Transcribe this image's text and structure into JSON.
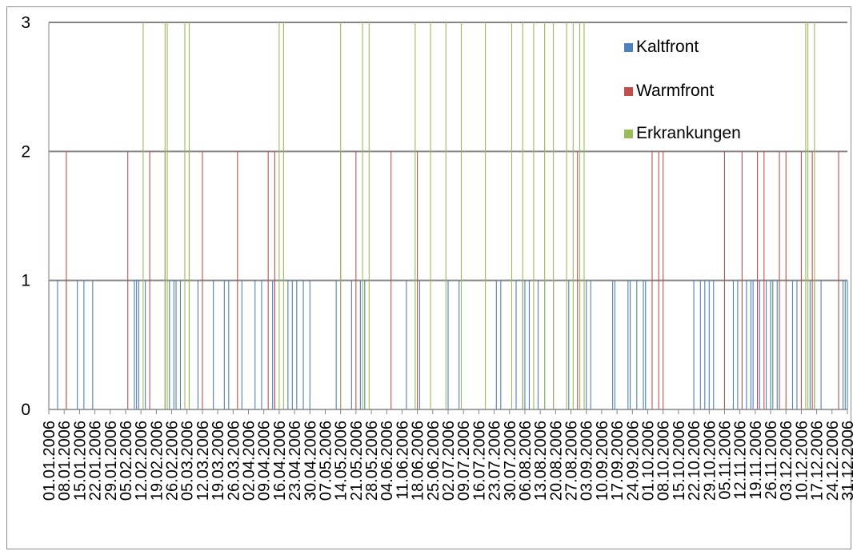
{
  "chart_data": {
    "type": "bar",
    "title": "",
    "xlabel": "",
    "ylabel": "",
    "ylim": [
      0,
      3
    ],
    "yticks": [
      0,
      1,
      2,
      3
    ],
    "grid": true,
    "legend_position": "top-right",
    "x_range": [
      "01.01.2006",
      "31.12.2006"
    ],
    "xtick_labels": [
      "01.01.2006",
      "08.01.2006",
      "15.01.2006",
      "22.01.2006",
      "29.01.2006",
      "05.02.2006",
      "12.02.2006",
      "19.02.2006",
      "26.02.2006",
      "05.03.2006",
      "12.03.2006",
      "19.03.2006",
      "26.03.2006",
      "02.04.2006",
      "09.04.2006",
      "16.04.2006",
      "23.04.2006",
      "30.04.2006",
      "07.05.2006",
      "14.05.2006",
      "21.05.2006",
      "28.05.2006",
      "04.06.2006",
      "11.06.2006",
      "18.06.2006",
      "25.06.2006",
      "02.07.2006",
      "09.07.2006",
      "16.07.2006",
      "23.07.2006",
      "30.07.2006",
      "06.08.2006",
      "13.08.2006",
      "20.08.2006",
      "27.08.2006",
      "03.09.2006",
      "10.09.2006",
      "17.09.2006",
      "24.09.2006",
      "01.10.2006",
      "08.10.2006",
      "15.10.2006",
      "22.10.2006",
      "29.10.2006",
      "05.11.2006",
      "12.11.2006",
      "19.11.2006",
      "26.11.2006",
      "03.12.2006",
      "10.12.2006",
      "17.12.2006",
      "24.12.2006",
      "31.12.2006"
    ],
    "series": [
      {
        "name": "Kaltfront",
        "color": "#4f81bd",
        "value": 1,
        "dates": [
          "01.01.2006",
          "05.01.2006",
          "09.01.2006",
          "14.01.2006",
          "17.01.2006",
          "21.01.2006",
          "09.02.2006",
          "10.02.2006",
          "11.02.2006",
          "14.02.2006",
          "25.02.2006",
          "27.02.2006",
          "28.02.2006",
          "02.03.2006",
          "10.03.2006",
          "17.03.2006",
          "22.03.2006",
          "24.03.2006",
          "30.03.2006",
          "05.04.2006",
          "08.04.2006",
          "13.04.2006",
          "14.04.2006",
          "20.04.2006",
          "22.04.2006",
          "24.04.2006",
          "27.04.2006",
          "30.04.2006",
          "12.05.2006",
          "19.05.2006",
          "23.05.2006",
          "25.05.2006",
          "13.06.2006",
          "19.06.2006",
          "02.07.2006",
          "07.07.2006",
          "24.07.2006",
          "26.07.2006",
          "02.08.2006",
          "05.08.2006",
          "06.08.2006",
          "08.08.2006",
          "12.08.2006",
          "15.08.2006",
          "19.08.2006",
          "26.08.2006",
          "31.08.2006",
          "03.09.2006",
          "05.09.2006",
          "15.09.2006",
          "16.09.2006",
          "22.09.2006",
          "23.09.2006",
          "26.09.2006",
          "29.09.2006",
          "30.09.2006",
          "22.10.2006",
          "25.10.2006",
          "27.10.2006",
          "29.10.2006",
          "31.10.2006",
          "09.11.2006",
          "11.11.2006",
          "15.11.2006",
          "17.11.2006",
          "18.11.2006",
          "20.11.2006",
          "21.11.2006",
          "24.11.2006",
          "26.11.2006",
          "27.11.2006",
          "29.11.2006",
          "06.12.2006",
          "08.12.2006",
          "14.12.2006",
          "16.12.2006",
          "19.12.2006",
          "29.12.2006",
          "30.12.2006",
          "31.12.2006"
        ]
      },
      {
        "name": "Warmfront",
        "color": "#c0504d",
        "value": 2,
        "dates": [
          "01.01.2006",
          "09.01.2006",
          "06.02.2006",
          "16.02.2006",
          "23.02.2006",
          "06.03.2006",
          "12.03.2006",
          "28.03.2006",
          "11.04.2006",
          "14.04.2006",
          "14.05.2006",
          "21.05.2006",
          "06.06.2006",
          "18.06.2006",
          "30.08.2006",
          "03.10.2006",
          "06.10.2006",
          "08.10.2006",
          "05.11.2006",
          "13.11.2006",
          "20.11.2006",
          "23.11.2006",
          "30.11.2006",
          "03.12.2006",
          "10.12.2006",
          "15.12.2006",
          "27.12.2006"
        ]
      },
      {
        "name": "Erkrankungen",
        "color": "#9bbb59",
        "value": 3,
        "dates": [
          "13.02.2006",
          "23.02.2006",
          "24.02.2006",
          "04.03.2006",
          "06.03.2006",
          "16.04.2006",
          "18.04.2006",
          "14.05.2006",
          "24.05.2006",
          "27.05.2006",
          "17.06.2006",
          "24.06.2006",
          "01.07.2006",
          "08.07.2006",
          "19.07.2006",
          "31.07.2006",
          "05.08.2006",
          "10.08.2006",
          "15.08.2006",
          "19.08.2006",
          "25.08.2006",
          "28.08.2006",
          "31.08.2006",
          "02.09.2006",
          "12.12.2006",
          "13.12.2006",
          "16.12.2006"
        ]
      }
    ]
  }
}
